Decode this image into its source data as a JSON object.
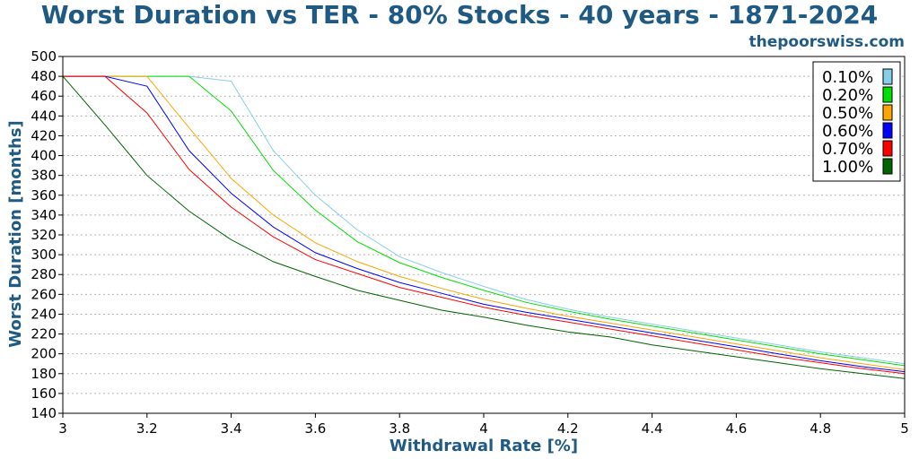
{
  "header": {
    "title": "Worst Duration vs TER - 80% Stocks - 40 years - 1871-2024",
    "site": "thepoorswiss.com"
  },
  "colors": {
    "title": "#1f5a85",
    "series": [
      "#87ceeb",
      "#00e000",
      "#ffa500",
      "#0000ff",
      "#ff0000",
      "#006400"
    ]
  },
  "chart_data": {
    "type": "line",
    "title": "Worst Duration vs TER - 80% Stocks - 40 years - 1871-2024",
    "xlabel": "Withdrawal Rate [%]",
    "ylabel": "Worst Duration [months]",
    "xlim": [
      3,
      5
    ],
    "ylim": [
      140,
      500
    ],
    "xticks": [
      3,
      3.2,
      3.4,
      3.6,
      3.8,
      4,
      4.2,
      4.4,
      4.6,
      4.8,
      5
    ],
    "xtick_labels": [
      "3",
      "3.2",
      "3.4",
      "3.6",
      "3.8",
      "4",
      "4.2",
      "4.4",
      "4.6",
      "4.8",
      "5"
    ],
    "yticks": [
      140,
      160,
      180,
      200,
      220,
      240,
      260,
      280,
      300,
      320,
      340,
      360,
      380,
      400,
      420,
      440,
      460,
      480,
      500
    ],
    "ytick_labels": [
      "140",
      "160",
      "180",
      "200",
      "220",
      "240",
      "260",
      "280",
      "300",
      "320",
      "340",
      "360",
      "380",
      "400",
      "420",
      "440",
      "460",
      "480",
      "500"
    ],
    "grid": true,
    "legend_position": "top-right",
    "x": [
      3.0,
      3.1,
      3.2,
      3.3,
      3.4,
      3.5,
      3.6,
      3.7,
      3.8,
      3.9,
      4.0,
      4.1,
      4.2,
      4.3,
      4.4,
      4.5,
      4.6,
      4.7,
      4.8,
      4.9,
      5.0
    ],
    "series": [
      {
        "name": "0.10%",
        "color": "#87ceeb",
        "values": [
          480,
          480,
          480,
          480,
          475,
          405,
          360,
          325,
          298,
          282,
          268,
          255,
          245,
          237,
          230,
          223,
          216,
          209,
          202,
          196,
          190
        ]
      },
      {
        "name": "0.20%",
        "color": "#00e000",
        "values": [
          480,
          480,
          480,
          480,
          445,
          385,
          345,
          313,
          292,
          277,
          264,
          252,
          243,
          235,
          228,
          221,
          214,
          207,
          200,
          194,
          188
        ]
      },
      {
        "name": "0.50%",
        "color": "#ffa500",
        "values": [
          480,
          480,
          480,
          428,
          377,
          340,
          312,
          293,
          278,
          266,
          255,
          246,
          238,
          231,
          224,
          217,
          210,
          203,
          196,
          190,
          184
        ]
      },
      {
        "name": "0.60%",
        "color": "#0000ff",
        "values": [
          480,
          480,
          470,
          405,
          362,
          328,
          302,
          286,
          272,
          261,
          250,
          242,
          235,
          228,
          221,
          214,
          207,
          200,
          193,
          187,
          182
        ]
      },
      {
        "name": "0.70%",
        "color": "#ff0000",
        "values": [
          480,
          480,
          443,
          386,
          348,
          318,
          295,
          281,
          267,
          257,
          247,
          239,
          232,
          225,
          218,
          211,
          204,
          197,
          191,
          185,
          180
        ]
      },
      {
        "name": "1.00%",
        "color": "#006400",
        "values": [
          480,
          431,
          380,
          344,
          315,
          293,
          278,
          264,
          254,
          244,
          237,
          229,
          222,
          217,
          209,
          203,
          197,
          191,
          185,
          180,
          175
        ]
      }
    ]
  }
}
